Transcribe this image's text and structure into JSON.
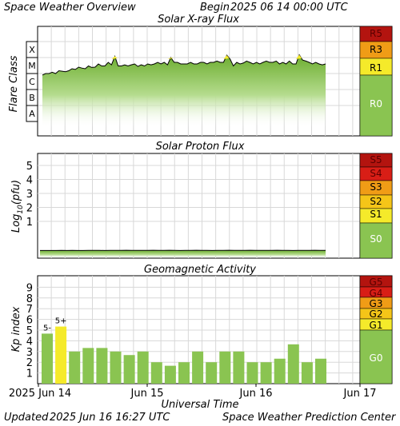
{
  "header": {
    "title": "Space Weather Overview",
    "begin_label": "Begin",
    "begin_value": "2025 06 14 00:00 UTC"
  },
  "footer": {
    "updated_label": "Updated",
    "updated_value": "2025 Jun 16 16:27 UTC",
    "credit": "Space Weather Prediction Center"
  },
  "colors": {
    "green": "#8ac451",
    "yellow": "#f5ea2a",
    "orange": "#f09c16",
    "dark_orange": "#f2541a",
    "red": "#d81e16",
    "dark_red": "#b3140f",
    "grid": "#d8d8d8"
  },
  "chart_data": [
    {
      "type": "area",
      "title": "Solar X-ray Flux",
      "ylabel": "Flare Class",
      "y_categories": [
        "A",
        "B",
        "C",
        "M",
        "X"
      ],
      "scale": "log",
      "series": [
        {
          "values": [
            "B8",
            "C1",
            "C1",
            "C1.2",
            "C1",
            "C1.5",
            "C1.4",
            "C1.3",
            "C1.5",
            "C2",
            "C1.8",
            "C2.5",
            "C2.2",
            "C2",
            "C3",
            "C2.4",
            "C2.5",
            "C4",
            "C3",
            "C3",
            "C5",
            "C3.5",
            "M1.2",
            "C3",
            "C3",
            "C3.5",
            "C3",
            "C3.5",
            "C4",
            "C2.8",
            "C3.5",
            "C3",
            "C4",
            "C3.5",
            "C4",
            "C5",
            "C4",
            "C5",
            "C3.5",
            "M1",
            "C5",
            "C5",
            "C4",
            "C4",
            "C4",
            "C5",
            "C4",
            "C4",
            "C5",
            "C5",
            "C4",
            "C5",
            "C5",
            "C6",
            "C5",
            "C5",
            "M1.4",
            "C8",
            "C3",
            "C5",
            "C4",
            "C4.5",
            "C6",
            "C5",
            "C4",
            "C5",
            "C4",
            "C5",
            "C6",
            "C5",
            "C5",
            "C6",
            "C4",
            "C5",
            "C4",
            "C6",
            "C4",
            "C4",
            "M1.5",
            "C7",
            "C6",
            "C5",
            "C4",
            "C5",
            "C4",
            "C3.5",
            "C4"
          ]
        }
      ],
      "scale_levels": [
        "R5",
        "R3",
        "R1",
        "R0"
      ]
    },
    {
      "type": "area",
      "title": "Solar Proton Flux",
      "ylabel": "Log10(pfu)",
      "ylabel_main": "Log",
      "ylabel_sub": "10",
      "ylabel_tail": "(pfu)",
      "yticks": [
        "1",
        "2",
        "3",
        "4",
        "5"
      ],
      "ylim": [
        -1.7,
        5.7
      ],
      "series": [
        {
          "values": [
            -1.08,
            -1.08,
            -1.08,
            -1.08,
            -1.07,
            -1.08,
            -1.07,
            -1.08,
            -1.08,
            -1.07,
            -1.07,
            -1.07,
            -1.08,
            -1.07,
            -1.07,
            -1.07,
            -1.06,
            -1.07,
            -1.07,
            -1.07,
            -1.07,
            -1.06,
            -1.07,
            -1.07,
            -1.06,
            -1.07,
            -1.08,
            -1.07,
            -1.07,
            -1.06,
            -1.07,
            -1.07,
            -1.08,
            -1.07,
            -1.07,
            -1.06,
            -1.07,
            -1.07,
            -1.07,
            -1.06,
            -1.07,
            -1.07,
            -1.07,
            -1.07,
            -1.06,
            -1.07,
            -1.07,
            -1.08,
            -1.07,
            -1.07,
            -1.07,
            -1.06,
            -1.07,
            -1.07
          ]
        }
      ],
      "scale_levels": [
        "S5",
        "S4",
        "S3",
        "S2",
        "S1",
        "S0"
      ]
    },
    {
      "type": "bar",
      "title": "Geomagnetic Activity",
      "ylabel": "Kp index",
      "yticks": [
        "1",
        "2",
        "3",
        "4",
        "5",
        "6",
        "7",
        "8",
        "9"
      ],
      "ylim": [
        0,
        9.7
      ],
      "values": [
        4.67,
        5.33,
        3.0,
        3.33,
        3.33,
        3.0,
        2.67,
        3.0,
        2.0,
        1.67,
        2.0,
        3.0,
        2.0,
        3.0,
        3.0,
        2.0,
        2.0,
        2.33,
        3.67,
        2.0,
        2.33
      ],
      "bar_labels": {
        "0": "5-",
        "1": "5+"
      },
      "scale_levels": [
        "G5",
        "G4",
        "G3",
        "G2",
        "G1",
        "G0"
      ]
    }
  ],
  "time_axis": {
    "labels": [
      "2025 Jun 14",
      "Jun 15",
      "Jun 16",
      "Jun 17"
    ],
    "xlabel": "Universal Time"
  }
}
